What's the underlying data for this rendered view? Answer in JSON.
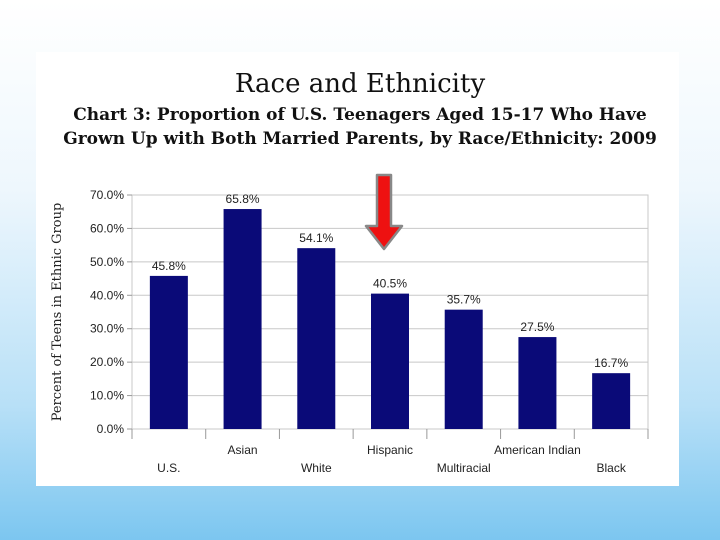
{
  "chart_data": {
    "type": "bar",
    "heading": "Race and Ethnicity",
    "title": [
      "Chart 3: Proportion of U.S. Teenagers Aged 15-17 Who Have",
      "Grown Up with Both Married Parents, by Race/Ethnicity: 2009"
    ],
    "ylabel": "Percent of Teens in Ethnic Group",
    "xlabel": "",
    "ylim": [
      0,
      70
    ],
    "yticks": [
      "0.0%",
      "10.0%",
      "20.0%",
      "30.0%",
      "40.0%",
      "50.0%",
      "60.0%",
      "70.0%"
    ],
    "categories": [
      "U.S.",
      "Asian",
      "White",
      "Hispanic",
      "Multiracial",
      "American Indian",
      "Black"
    ],
    "values": [
      45.8,
      65.8,
      54.1,
      40.5,
      35.7,
      27.5,
      16.7
    ],
    "data_labels": [
      "45.8%",
      "65.8%",
      "54.1%",
      "40.5%",
      "35.7%",
      "27.5%",
      "16.7%"
    ],
    "bar_color": "#0a0a78",
    "grid": true,
    "annotation": {
      "type": "arrow",
      "points_to": "Hispanic",
      "color": "#ee1111"
    }
  }
}
